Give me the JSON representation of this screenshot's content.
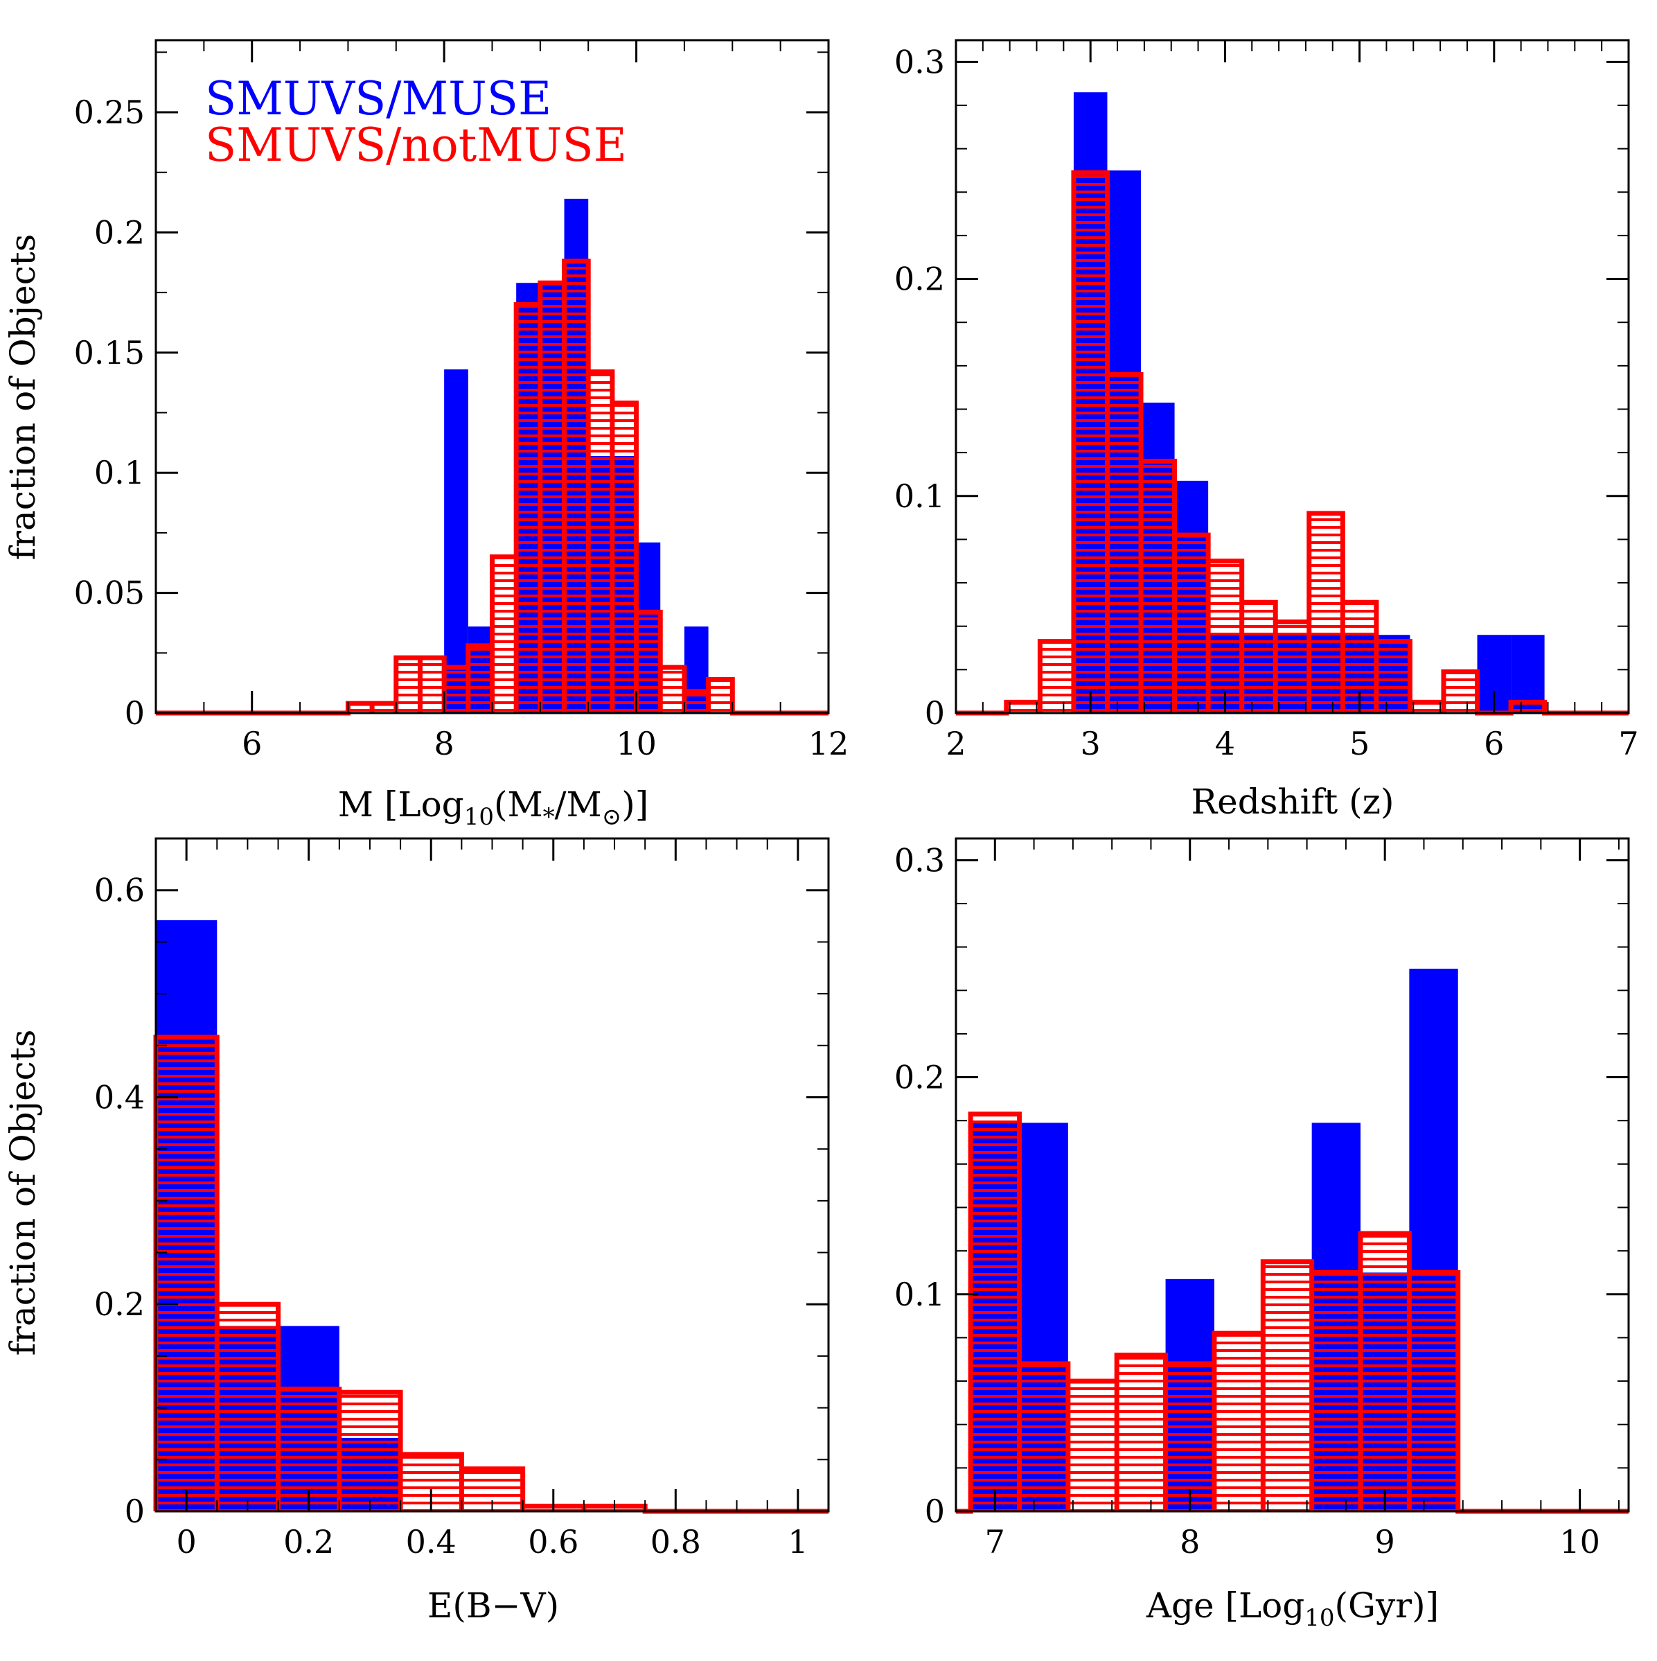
{
  "colors": {
    "muse": "#0000ff",
    "notmuse": "#ff0000",
    "axis": "#000000",
    "background": "#ffffff"
  },
  "legend": [
    {
      "label": "SMUVS/MUSE",
      "color": "#0000ff"
    },
    {
      "label": "SMUVS/notMUSE",
      "color": "#ff0000"
    }
  ],
  "chart_data": [
    {
      "type": "bar",
      "id": "mass",
      "xlabel": {
        "main": "M [Log",
        "sub": "10",
        "rest": "(M",
        "star": "*",
        "slash": "/M",
        "sun": "⊙",
        "close": ")]"
      },
      "ylabel": "fraction of Objects",
      "xlim": [
        5,
        12
      ],
      "ylim": [
        0,
        0.28
      ],
      "xticks": [
        6,
        8,
        10,
        12
      ],
      "xtick_labels": [
        "6",
        "8",
        "10",
        "12"
      ],
      "yticks": [
        0,
        0.05,
        0.1,
        0.15,
        0.2,
        0.25
      ],
      "ytick_labels": [
        "0",
        "0.05",
        "0.1",
        "0.15",
        "0.2",
        "0.25"
      ],
      "x_minor": 0.5,
      "y_minor": 0.025,
      "series": [
        {
          "name": "SMUVS/MUSE",
          "style": "filled",
          "bin_width": 0.25,
          "bins": [
            [
              8.125,
              0.143
            ],
            [
              8.375,
              0.036
            ],
            [
              8.875,
              0.179
            ],
            [
              9.125,
              0.179
            ],
            [
              9.375,
              0.214
            ],
            [
              9.625,
              0.107
            ],
            [
              9.875,
              0.107
            ],
            [
              10.125,
              0.071
            ],
            [
              10.375,
              0.0
            ],
            [
              10.625,
              0.036
            ],
            [
              10.875,
              0.0
            ]
          ]
        },
        {
          "name": "SMUVS/notMUSE",
          "style": "hatched",
          "bin_width": 0.25,
          "bins": [
            [
              7.125,
              0.004
            ],
            [
              7.375,
              0.004
            ],
            [
              7.625,
              0.023
            ],
            [
              7.875,
              0.023
            ],
            [
              8.125,
              0.019
            ],
            [
              8.375,
              0.028
            ],
            [
              8.625,
              0.065
            ],
            [
              8.875,
              0.17
            ],
            [
              9.125,
              0.179
            ],
            [
              9.375,
              0.188
            ],
            [
              9.625,
              0.142
            ],
            [
              9.875,
              0.129
            ],
            [
              10.125,
              0.042
            ],
            [
              10.375,
              0.019
            ],
            [
              10.625,
              0.009
            ],
            [
              10.875,
              0.014
            ]
          ]
        }
      ]
    },
    {
      "type": "bar",
      "id": "redshift",
      "xlabel": "Redshift (z)",
      "ylabel": "",
      "xlim": [
        2,
        7
      ],
      "ylim": [
        0,
        0.31
      ],
      "xticks": [
        2,
        3,
        4,
        5,
        6,
        7
      ],
      "xtick_labels": [
        "2",
        "3",
        "4",
        "5",
        "6",
        "7"
      ],
      "yticks": [
        0,
        0.1,
        0.2,
        0.3
      ],
      "ytick_labels": [
        "0",
        "0.1",
        "0.2",
        "0.3"
      ],
      "x_minor": 0.2,
      "y_minor": 0.02,
      "series": [
        {
          "name": "SMUVS/MUSE",
          "style": "filled",
          "bin_width": 0.25,
          "bins": [
            [
              3.0,
              0.286
            ],
            [
              3.25,
              0.25
            ],
            [
              3.5,
              0.143
            ],
            [
              3.75,
              0.107
            ],
            [
              4.0,
              0.036
            ],
            [
              4.25,
              0.036
            ],
            [
              4.5,
              0.036
            ],
            [
              4.75,
              0.036
            ],
            [
              5.0,
              0.036
            ],
            [
              5.25,
              0.036
            ],
            [
              5.5,
              0.0
            ],
            [
              5.75,
              0.0
            ],
            [
              6.0,
              0.036
            ],
            [
              6.25,
              0.036
            ]
          ]
        },
        {
          "name": "SMUVS/notMUSE",
          "style": "hatched",
          "bin_width": 0.25,
          "bins": [
            [
              2.5,
              0.005
            ],
            [
              2.75,
              0.033
            ],
            [
              3.0,
              0.249
            ],
            [
              3.25,
              0.156
            ],
            [
              3.5,
              0.116
            ],
            [
              3.75,
              0.082
            ],
            [
              4.0,
              0.07
            ],
            [
              4.25,
              0.051
            ],
            [
              4.5,
              0.042
            ],
            [
              4.75,
              0.092
            ],
            [
              5.0,
              0.051
            ],
            [
              5.25,
              0.033
            ],
            [
              5.5,
              0.005
            ],
            [
              5.75,
              0.019
            ],
            [
              6.0,
              0.0
            ],
            [
              6.25,
              0.005
            ]
          ]
        }
      ]
    },
    {
      "type": "bar",
      "id": "ebv",
      "xlabel": "E(B−V)",
      "ylabel": "fraction of Objects",
      "xlim": [
        -0.05,
        1.05
      ],
      "ylim": [
        0,
        0.65
      ],
      "xticks": [
        0,
        0.2,
        0.4,
        0.6,
        0.8,
        1
      ],
      "xtick_labels": [
        "0",
        "0.2",
        "0.4",
        "0.6",
        "0.8",
        "1"
      ],
      "yticks": [
        0,
        0.2,
        0.4,
        0.6
      ],
      "ytick_labels": [
        "0",
        "0.2",
        "0.4",
        "0.6"
      ],
      "x_minor": 0.05,
      "y_minor": 0.05,
      "series": [
        {
          "name": "SMUVS/MUSE",
          "style": "filled",
          "bin_width": 0.1,
          "bins": [
            [
              0.0,
              0.571
            ],
            [
              0.1,
              0.179
            ],
            [
              0.2,
              0.179
            ],
            [
              0.3,
              0.071
            ]
          ]
        },
        {
          "name": "SMUVS/notMUSE",
          "style": "hatched",
          "bin_width": 0.1,
          "bins": [
            [
              0.0,
              0.458
            ],
            [
              0.1,
              0.2
            ],
            [
              0.2,
              0.118
            ],
            [
              0.3,
              0.115
            ],
            [
              0.4,
              0.055
            ],
            [
              0.5,
              0.041
            ],
            [
              0.6,
              0.005
            ],
            [
              0.7,
              0.005
            ]
          ]
        }
      ]
    },
    {
      "type": "bar",
      "id": "age",
      "xlabel": {
        "main": "Age [Log",
        "sub": "10",
        "rest": "(Gyr)]"
      },
      "ylabel": "",
      "xlim": [
        6.8,
        10.25
      ],
      "ylim": [
        0,
        0.31
      ],
      "xticks": [
        7,
        8,
        9,
        10
      ],
      "xtick_labels": [
        "7",
        "8",
        "9",
        "10"
      ],
      "x_minor": 0.2,
      "y_minor": 0.02,
      "yticks": [
        0,
        0.1,
        0.2,
        0.3
      ],
      "ytick_labels": [
        "0",
        "0.1",
        "0.2",
        "0.3"
      ],
      "series": [
        {
          "name": "SMUVS/MUSE",
          "style": "filled",
          "bin_width": 0.25,
          "bins": [
            [
              7.0,
              0.179
            ],
            [
              7.25,
              0.179
            ],
            [
              7.5,
              0.0
            ],
            [
              7.75,
              0.0
            ],
            [
              8.0,
              0.107
            ],
            [
              8.25,
              0.0
            ],
            [
              8.5,
              0.0
            ],
            [
              8.75,
              0.179
            ],
            [
              9.0,
              0.11
            ],
            [
              9.25,
              0.25
            ]
          ]
        },
        {
          "name": "SMUVS/notMUSE",
          "style": "hatched",
          "bin_width": 0.25,
          "bins": [
            [
              7.0,
              0.183
            ],
            [
              7.25,
              0.068
            ],
            [
              7.5,
              0.06
            ],
            [
              7.75,
              0.072
            ],
            [
              8.0,
              0.068
            ],
            [
              8.25,
              0.082
            ],
            [
              8.5,
              0.115
            ],
            [
              8.75,
              0.11
            ],
            [
              9.0,
              0.128
            ],
            [
              9.25,
              0.11
            ]
          ]
        }
      ]
    }
  ]
}
